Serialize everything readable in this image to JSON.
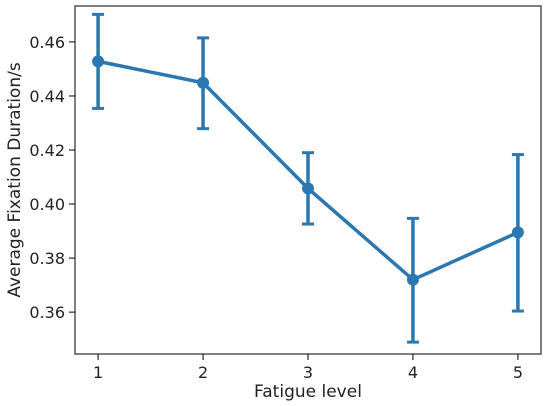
{
  "chart_data": {
    "type": "line",
    "title": "",
    "xlabel": "Fatigue level",
    "ylabel": "Average Fixation Duration/s",
    "x": [
      1,
      2,
      3,
      4,
      5
    ],
    "xticks": [
      "1",
      "2",
      "3",
      "4",
      "5"
    ],
    "xlim": [
      0.78,
      5.22
    ],
    "ylim": [
      0.3445,
      0.4733
    ],
    "yticks": [
      "0.36",
      "0.38",
      "0.40",
      "0.42",
      "0.44",
      "0.46"
    ],
    "grid": false,
    "legend": "none",
    "series": [
      {
        "values": [
          0.4528,
          0.4449,
          0.4058,
          0.372,
          0.3895
        ],
        "error_lower": [
          0.4354,
          0.4279,
          0.3926,
          0.3489,
          0.3604
        ],
        "error_upper": [
          0.4702,
          0.4615,
          0.419,
          0.3947,
          0.4183
        ],
        "color": "#2b77b0"
      }
    ]
  }
}
